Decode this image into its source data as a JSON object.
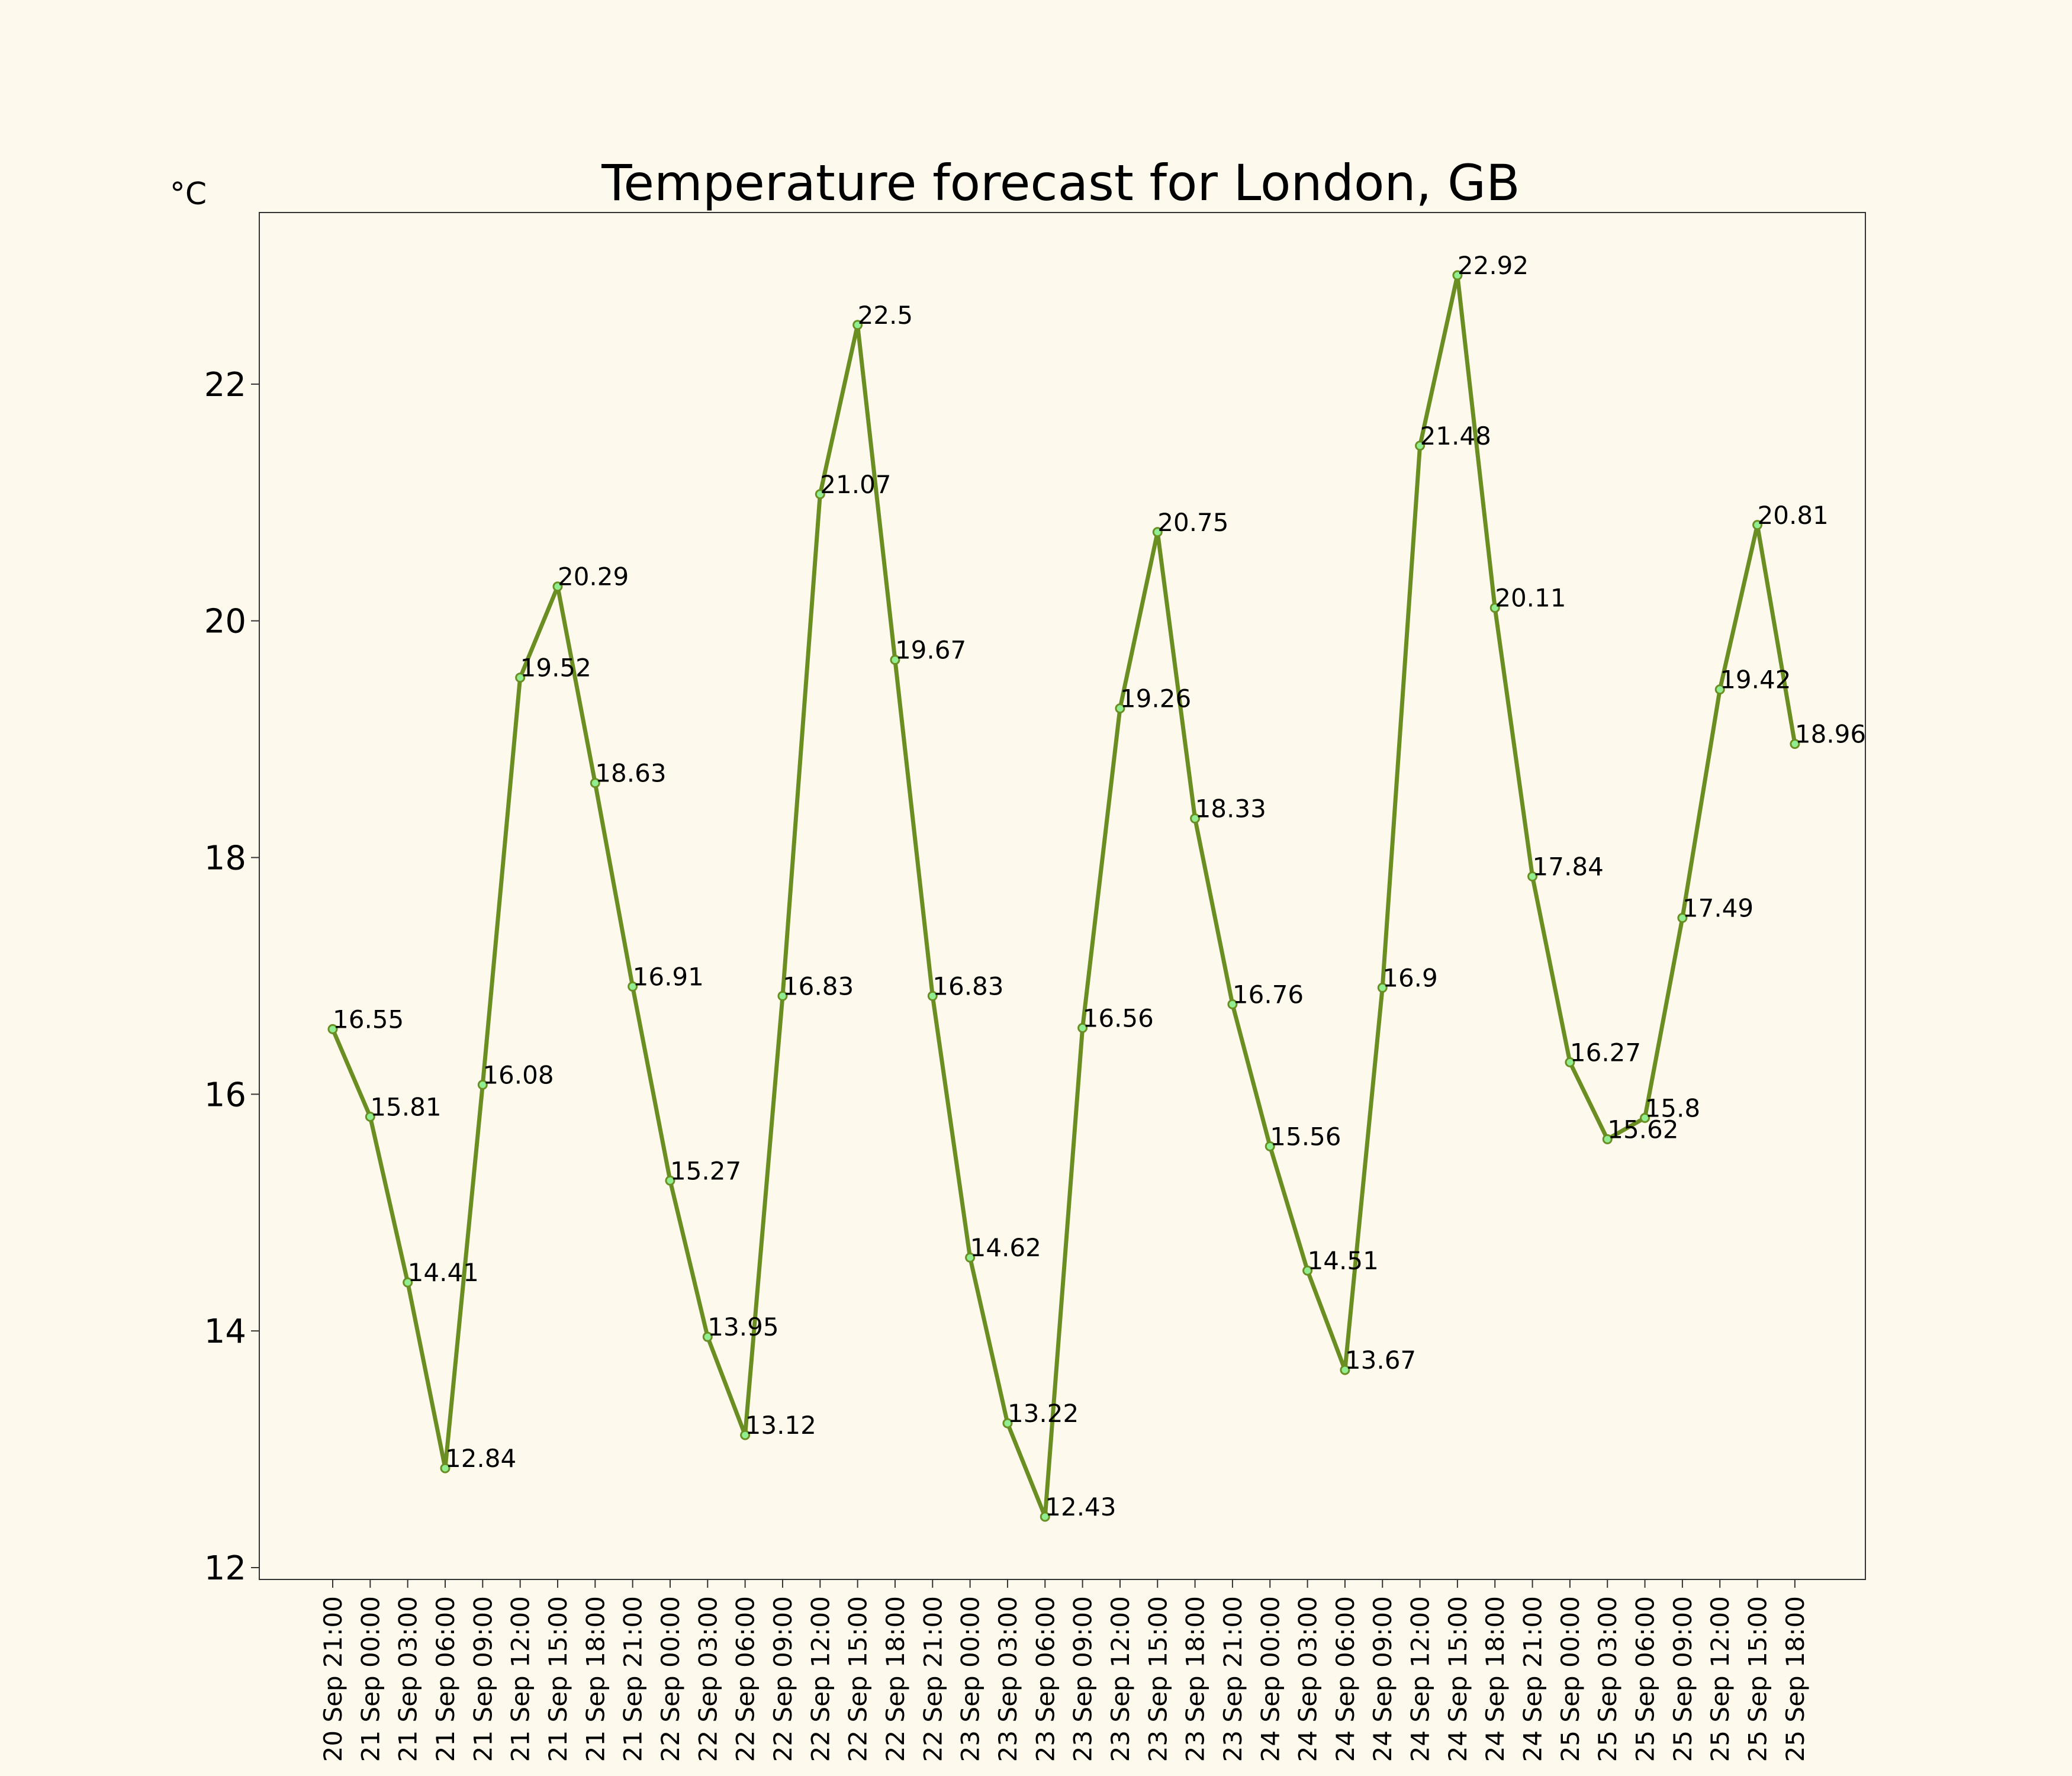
{
  "chart_data": {
    "type": "line",
    "title": "Temperature forecast for London, GB",
    "ylabel": "°C",
    "xlabel": "",
    "ylim": [
      11.9,
      23.45
    ],
    "yticks": [
      12,
      14,
      16,
      18,
      20,
      22
    ],
    "grid": false,
    "colors": {
      "line": "#6b8e23",
      "marker": "#90ee90",
      "frame": "#333333"
    },
    "categories": [
      "20 Sep 21:00",
      "21 Sep 00:00",
      "21 Sep 03:00",
      "21 Sep 06:00",
      "21 Sep 09:00",
      "21 Sep 12:00",
      "21 Sep 15:00",
      "21 Sep 18:00",
      "21 Sep 21:00",
      "22 Sep 00:00",
      "22 Sep 03:00",
      "22 Sep 06:00",
      "22 Sep 09:00",
      "22 Sep 12:00",
      "22 Sep 15:00",
      "22 Sep 18:00",
      "22 Sep 21:00",
      "23 Sep 00:00",
      "23 Sep 03:00",
      "23 Sep 06:00",
      "23 Sep 09:00",
      "23 Sep 12:00",
      "23 Sep 15:00",
      "23 Sep 18:00",
      "23 Sep 21:00",
      "24 Sep 00:00",
      "24 Sep 03:00",
      "24 Sep 06:00",
      "24 Sep 09:00",
      "24 Sep 12:00",
      "24 Sep 15:00",
      "24 Sep 18:00",
      "24 Sep 21:00",
      "25 Sep 00:00",
      "25 Sep 03:00",
      "25 Sep 06:00",
      "25 Sep 09:00",
      "25 Sep 12:00",
      "25 Sep 15:00",
      "25 Sep 18:00"
    ],
    "values": [
      16.55,
      15.81,
      14.41,
      12.84,
      16.08,
      19.52,
      20.29,
      18.63,
      16.91,
      15.27,
      13.95,
      13.12,
      16.83,
      21.07,
      22.5,
      19.67,
      16.83,
      14.62,
      13.22,
      12.43,
      16.56,
      19.26,
      20.75,
      18.33,
      16.76,
      15.56,
      14.51,
      13.67,
      16.9,
      21.48,
      22.92,
      20.11,
      17.84,
      16.27,
      15.62,
      15.8,
      17.49,
      19.42,
      20.81,
      18.96
    ]
  }
}
